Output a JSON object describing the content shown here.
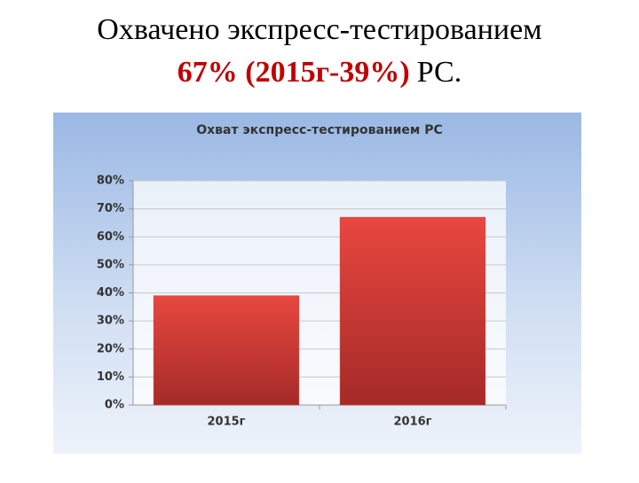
{
  "slide_title": {
    "line1": "Охвачено экспресс-тестированием",
    "highlight": "67% (2015г-39%)",
    "suffix": "РС."
  },
  "chart_data": {
    "type": "bar",
    "title": "Охват экспресс-тестированием РС",
    "categories": [
      "2015г",
      "2016г"
    ],
    "values": [
      39,
      67
    ],
    "color": "#d63a36",
    "ylim": [
      0,
      80
    ],
    "yticks": [
      {
        "value": 0,
        "label": "0%"
      },
      {
        "value": 10,
        "label": "10%"
      },
      {
        "value": 20,
        "label": "20%"
      },
      {
        "value": 30,
        "label": "30%"
      },
      {
        "value": 40,
        "label": "40%"
      },
      {
        "value": 50,
        "label": "50%"
      },
      {
        "value": 60,
        "label": "60%"
      },
      {
        "value": 70,
        "label": "70%"
      },
      {
        "value": 80,
        "label": "80%"
      }
    ],
    "grid": true
  }
}
